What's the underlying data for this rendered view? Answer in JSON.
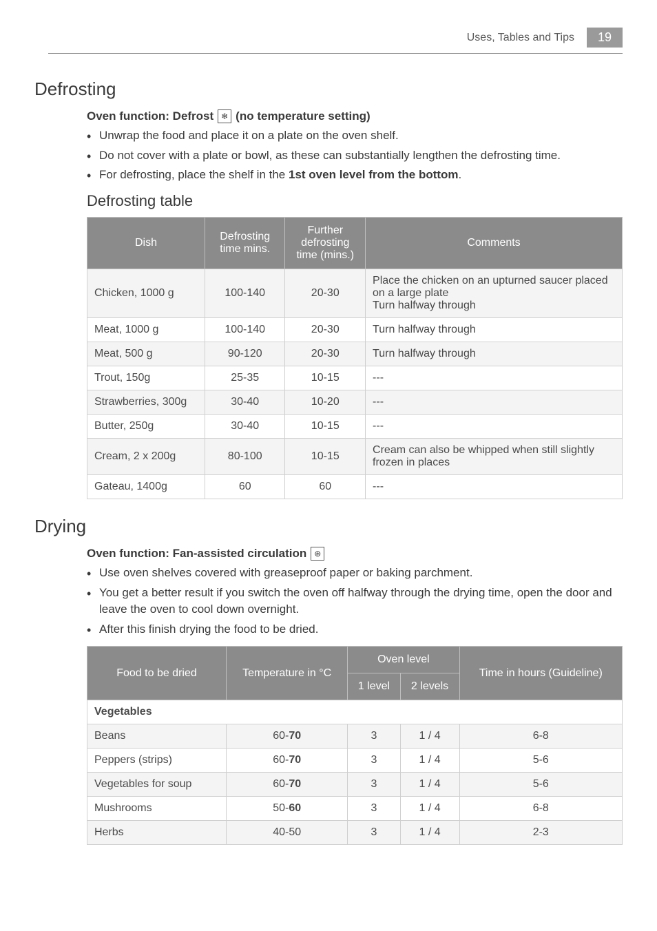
{
  "page": {
    "header_text": "Uses, Tables and Tips",
    "page_number": "19"
  },
  "defrosting": {
    "title": "Defrosting",
    "func_prefix": "Oven function: Defrost",
    "func_suffix": "(no temperature setting)",
    "defrost_icon_glyph": "❄",
    "bullets": [
      "Unwrap the food and place it on a plate on the oven shelf.",
      "Do not cover with a plate or bowl, as these can substantially lengthen the defrosting time.",
      "For defrosting, place the shelf in the <b>1st oven level from the bottom</b>."
    ],
    "table_title": "Defrosting table",
    "columns": [
      "Dish",
      "Defrosting time mins.",
      "Further defrosting time (mins.)",
      "Comments"
    ],
    "rows": [
      {
        "dish": "Chicken, 1000 g",
        "time": "100-140",
        "further": "20-30",
        "comment": "Place the chicken on an upturned saucer placed on a large plate<br>Turn halfway through"
      },
      {
        "dish": "Meat, 1000 g",
        "time": "100-140",
        "further": "20-30",
        "comment": "Turn halfway through"
      },
      {
        "dish": "Meat, 500 g",
        "time": "90-120",
        "further": "20-30",
        "comment": "Turn halfway through"
      },
      {
        "dish": "Trout, 150g",
        "time": "25-35",
        "further": "10-15",
        "comment": "---"
      },
      {
        "dish": "Strawberries, 300g",
        "time": "30-40",
        "further": "10-20",
        "comment": "---"
      },
      {
        "dish": "Butter, 250g",
        "time": "30-40",
        "further": "10-15",
        "comment": "---"
      },
      {
        "dish": "Cream, 2 x 200g",
        "time": "80-100",
        "further": "10-15",
        "comment": "Cream can also be whipped when still slightly frozen in places"
      },
      {
        "dish": "Gateau, 1400g",
        "time": "60",
        "further": "60",
        "comment": "---"
      }
    ]
  },
  "drying": {
    "title": "Drying",
    "func_prefix": "Oven function: Fan-assisted circulation",
    "fan_icon_glyph": "⊛",
    "bullets": [
      "Use oven shelves covered with greaseproof paper or baking parchment.",
      "You get a better result if you switch the oven off halfway through the drying time, open the door and leave the oven to cool down overnight.",
      "After this finish drying the food to be dried."
    ],
    "columns_top": [
      "Food to be dried",
      "Temperature in °C",
      "Oven level",
      "Time in hours (Guideline)"
    ],
    "columns_sub": [
      "1 level",
      "2 levels"
    ],
    "category": "Vegetables",
    "rows": [
      {
        "food": "Beans",
        "temp": "60-<b>70</b>",
        "l1": "3",
        "l2": "1 / 4",
        "hours": "6-8"
      },
      {
        "food": "Peppers (strips)",
        "temp": "60-<b>70</b>",
        "l1": "3",
        "l2": "1 / 4",
        "hours": "5-6"
      },
      {
        "food": "Vegetables for soup",
        "temp": "60-<b>70</b>",
        "l1": "3",
        "l2": "1 / 4",
        "hours": "5-6"
      },
      {
        "food": "Mushrooms",
        "temp": "50-<b>60</b>",
        "l1": "3",
        "l2": "1 / 4",
        "hours": "6-8"
      },
      {
        "food": "Herbs",
        "temp": "40-50",
        "l1": "3",
        "l2": "1 / 4",
        "hours": "2-3"
      }
    ]
  },
  "style": {
    "header_bg": "#9a9a9a",
    "table_header_bg": "#8b8b8b",
    "row_odd_bg": "#f4f4f4",
    "row_even_bg": "#ffffff",
    "text_color": "#3a3a3a",
    "border_color": "#cfcfcf"
  }
}
